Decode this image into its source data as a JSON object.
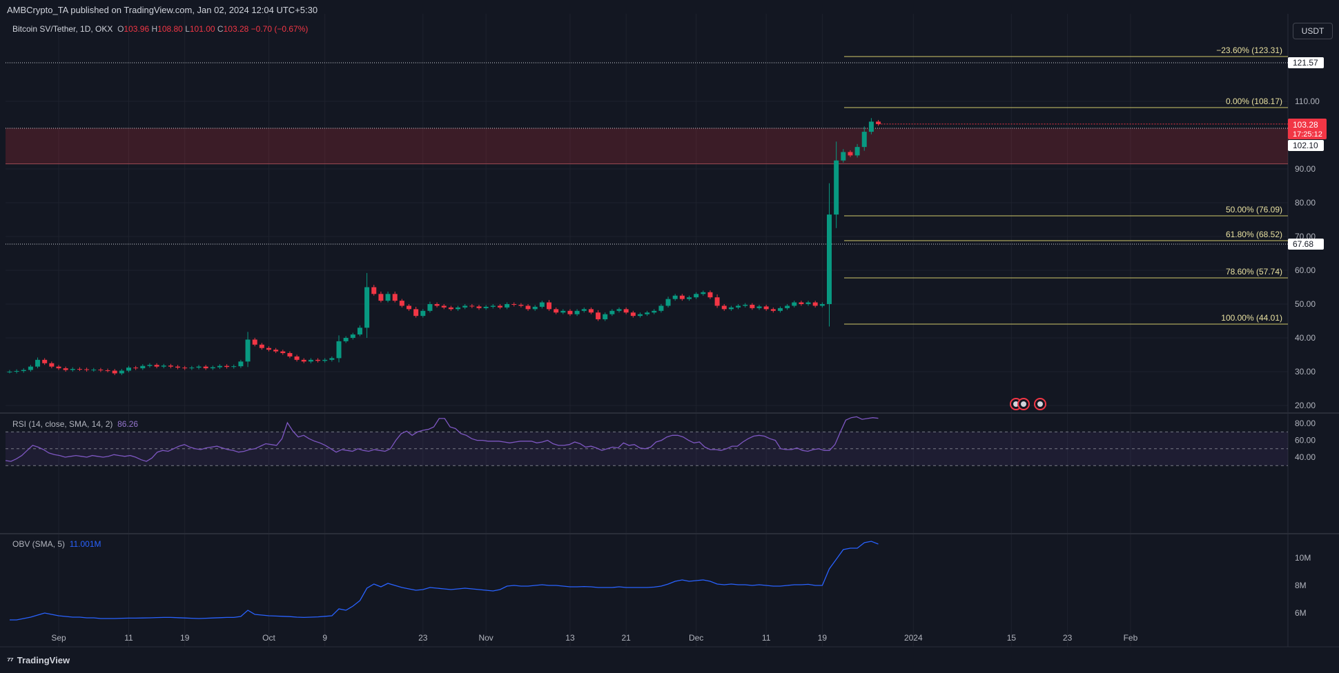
{
  "header": {
    "publisher": "AMBCrypto_TA published on TradingView.com, Jan 02, 2024 12:04 UTC+5:30",
    "symbol": "Bitcoin SV/Tether, 1D, OKX",
    "ohlc": {
      "O": "103.96",
      "H": "108.80",
      "L": "101.00",
      "C": "103.28",
      "change": "−0.70 (−0.67%)"
    },
    "currency": "USDT"
  },
  "rsi_legend": {
    "label": "RSI (14, close, SMA, 14, 2)",
    "value": "86.26"
  },
  "obv_legend": {
    "label": "OBV (SMA, 5)",
    "value": "11.001M"
  },
  "brand": "TradingView",
  "colors": {
    "up": "#089981",
    "down": "#f23645",
    "fib": "#d1c96b",
    "zone": "#f23645",
    "rsi": "#7e57c2",
    "obv": "#2962ff"
  },
  "chart_data": {
    "type": "candlestick",
    "price_axis": {
      "min": 20,
      "max": 110,
      "ticks": [
        20,
        30,
        40,
        50,
        60,
        70,
        80,
        90,
        110
      ]
    },
    "x_ticks": [
      {
        "label": "Sep",
        "day": 0
      },
      {
        "label": "11",
        "day": 10
      },
      {
        "label": "19",
        "day": 18
      },
      {
        "label": "Oct",
        "day": 30
      },
      {
        "label": "9",
        "day": 38
      },
      {
        "label": "23",
        "day": 52
      },
      {
        "label": "Nov",
        "day": 61
      },
      {
        "label": "13",
        "day": 73
      },
      {
        "label": "21",
        "day": 81
      },
      {
        "label": "Dec",
        "day": 91
      },
      {
        "label": "11",
        "day": 101
      },
      {
        "label": "19",
        "day": 109
      },
      {
        "label": "2024",
        "day": 122
      },
      {
        "label": "15",
        "day": 136
      },
      {
        "label": "23",
        "day": 144
      },
      {
        "label": "Feb",
        "day": 153
      }
    ],
    "closes": [
      30.0,
      30.2,
      30.5,
      31.5,
      33.5,
      32.5,
      31.5,
      31.0,
      30.5,
      30.8,
      30.7,
      30.5,
      30.6,
      30.4,
      30.3,
      29.5,
      30.3,
      31.2,
      31.0,
      31.7,
      32.0,
      31.5,
      31.8,
      31.5,
      31.2,
      31.0,
      31.2,
      31.5,
      31.0,
      31.3,
      31.7,
      31.4,
      31.6,
      33.0,
      39.5,
      38.0,
      37.0,
      36.5,
      36.0,
      35.5,
      34.5,
      33.5,
      33.0,
      33.5,
      33.2,
      33.5,
      34.0,
      39.0,
      40.0,
      41.0,
      43.0,
      55.0,
      53.0,
      51.0,
      53.0,
      51.0,
      49.5,
      48.5,
      46.5,
      48.0,
      50.0,
      49.5,
      49.0,
      48.5,
      49.0,
      49.5,
      49.3,
      48.8,
      49.2,
      49.5,
      49.0,
      50.0,
      49.8,
      49.5,
      48.5,
      49.2,
      50.5,
      48.5,
      47.5,
      48.0,
      47.0,
      48.0,
      48.5,
      47.5,
      45.5,
      47.0,
      48.0,
      48.5,
      47.5,
      46.5,
      47.0,
      47.5,
      48.0,
      49.5,
      51.5,
      52.5,
      51.5,
      52.0,
      53.0,
      53.5,
      52.0,
      49.5,
      48.5,
      49.0,
      49.5,
      49.8,
      48.8,
      49.3,
      48.5,
      48.0,
      48.8,
      49.5,
      50.5,
      50.0,
      50.5,
      49.5,
      50.0,
      76.5,
      92.5,
      95.0,
      94.0,
      96.5,
      101.0,
      104.0,
      103.28
    ],
    "fib_levels": [
      {
        "label": "−23.60% (123.31)",
        "value": 123.31
      },
      {
        "label": "0.00% (108.17)",
        "value": 108.17
      },
      {
        "label": "50.00% (76.09)",
        "value": 76.09
      },
      {
        "label": "61.80% (68.52)",
        "value": 68.52
      },
      {
        "label": "78.60% (57.74)",
        "value": 57.74
      },
      {
        "label": "100.00% (44.01)",
        "value": 44.01
      }
    ],
    "horizontal_lines": [
      121.57,
      102.1,
      67.68
    ],
    "zone": {
      "top": 102.1,
      "bottom": 91.5
    },
    "price_labels": {
      "line_a": "121.57",
      "line_b": "102.10",
      "line_c": "67.68",
      "last": "103.28",
      "countdown": "17:25:12"
    },
    "rsi": {
      "axis": {
        "ticks": [
          40,
          60,
          80
        ]
      },
      "values": [
        36,
        35,
        38,
        42,
        48,
        54,
        52,
        49,
        45,
        43,
        42,
        40,
        41,
        42,
        41,
        40,
        42,
        41,
        40,
        41,
        43,
        42,
        41,
        42,
        40,
        37,
        35,
        39,
        46,
        48,
        47,
        50,
        53,
        55,
        52,
        50,
        49,
        51,
        52,
        53,
        51,
        49,
        48,
        46,
        47,
        49,
        50,
        53,
        56,
        55,
        54,
        62,
        81,
        71,
        64,
        66,
        62,
        59,
        57,
        54,
        50,
        46,
        49,
        48,
        47,
        50,
        48,
        47,
        49,
        48,
        47,
        50,
        60,
        68,
        71,
        66,
        70,
        72,
        73,
        76,
        86,
        86,
        76,
        74,
        68,
        66,
        62,
        60,
        60,
        59,
        59,
        59,
        58,
        57,
        58,
        59,
        59,
        59,
        57,
        58,
        60,
        56,
        54,
        54,
        55,
        58,
        56,
        52,
        53,
        51,
        48,
        50,
        52,
        51,
        57,
        54,
        55,
        51,
        50,
        52,
        58,
        60,
        64,
        66,
        66,
        64,
        60,
        57,
        58,
        52,
        49,
        49,
        48,
        50,
        53,
        53,
        58,
        62,
        65,
        66,
        65,
        62,
        60,
        50,
        49,
        49,
        51,
        48,
        47,
        49,
        50,
        48,
        48,
        55,
        70,
        84,
        87,
        88,
        85,
        86,
        87,
        86.26
      ],
      "rsi_display": "continuous"
    },
    "obv": {
      "axis": {
        "ticks": [
          "6M",
          "8M",
          "10M"
        ]
      },
      "values": [
        5.5,
        5.5,
        5.6,
        5.7,
        5.85,
        6.0,
        5.9,
        5.8,
        5.75,
        5.7,
        5.7,
        5.65,
        5.65,
        5.6,
        5.6,
        5.6,
        5.62,
        5.63,
        5.63,
        5.64,
        5.65,
        5.67,
        5.68,
        5.68,
        5.66,
        5.64,
        5.62,
        5.6,
        5.62,
        5.64,
        5.66,
        5.68,
        5.68,
        5.75,
        6.2,
        5.9,
        5.85,
        5.8,
        5.78,
        5.76,
        5.74,
        5.7,
        5.68,
        5.7,
        5.72,
        5.76,
        5.8,
        6.3,
        6.2,
        6.5,
        6.9,
        7.8,
        8.1,
        7.9,
        8.15,
        8.0,
        7.85,
        7.75,
        7.65,
        7.7,
        7.85,
        7.8,
        7.75,
        7.7,
        7.75,
        7.8,
        7.75,
        7.7,
        7.65,
        7.6,
        7.7,
        7.95,
        8.0,
        7.95,
        7.95,
        8.0,
        8.05,
        8.0,
        8.0,
        7.95,
        7.9,
        7.9,
        7.92,
        7.9,
        7.85,
        7.85,
        7.85,
        7.9,
        7.85,
        7.85,
        7.85,
        7.85,
        7.88,
        7.95,
        8.1,
        8.3,
        8.4,
        8.3,
        8.35,
        8.4,
        8.3,
        8.1,
        8.05,
        8.1,
        8.05,
        8.05,
        8.0,
        8.05,
        8.0,
        7.95,
        7.95,
        8.0,
        8.05,
        8.05,
        8.08,
        8.0,
        8.0,
        9.2,
        9.9,
        10.6,
        10.7,
        10.7,
        11.1,
        11.2,
        11.001
      ]
    }
  }
}
